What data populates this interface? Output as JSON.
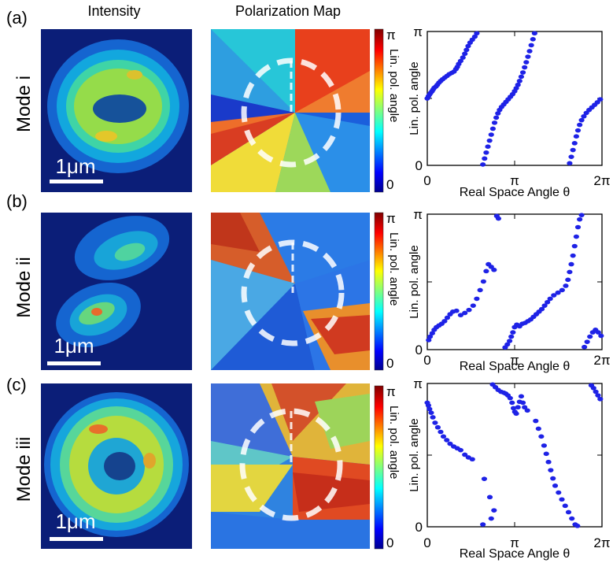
{
  "headers": {
    "intensity": "Intensity",
    "polarization": "Polarization Map"
  },
  "colorbar": {
    "top": "π",
    "bottom": "0",
    "label": "Lin. pol. angle"
  },
  "scalebar": "1μm",
  "colors": {
    "marker": "#1e22e6",
    "dashes": "#ffffff",
    "background": "#ffffff"
  },
  "chart_data": [
    {
      "type": "scatter",
      "panel": "(a)",
      "mode": "Mode i",
      "xlabel": "Real Space Angle θ",
      "ylabel": "Lin. pol. angle",
      "xlim": [
        0,
        6.2832
      ],
      "ylim": [
        0,
        3.1416
      ],
      "x_tick_labels": [
        "0",
        "π",
        "2π"
      ],
      "y_tick_labels": [
        "0",
        "π"
      ],
      "grid": false,
      "points": [
        [
          0.0,
          1.57
        ],
        [
          0.04,
          1.62
        ],
        [
          0.08,
          1.66
        ],
        [
          0.12,
          1.7
        ],
        [
          0.17,
          1.74
        ],
        [
          0.21,
          1.78
        ],
        [
          0.25,
          1.82
        ],
        [
          0.31,
          1.85
        ],
        [
          0.36,
          1.89
        ],
        [
          0.42,
          1.94
        ],
        [
          0.48,
          1.98
        ],
        [
          0.55,
          2.02
        ],
        [
          0.63,
          2.06
        ],
        [
          0.71,
          2.1
        ],
        [
          0.79,
          2.14
        ],
        [
          0.88,
          2.17
        ],
        [
          0.96,
          2.2
        ],
        [
          1.03,
          2.26
        ],
        [
          1.08,
          2.31
        ],
        [
          1.13,
          2.38
        ],
        [
          1.2,
          2.45
        ],
        [
          1.28,
          2.53
        ],
        [
          1.35,
          2.62
        ],
        [
          1.41,
          2.71
        ],
        [
          1.47,
          2.8
        ],
        [
          1.54,
          2.88
        ],
        [
          1.62,
          2.95
        ],
        [
          1.71,
          3.02
        ],
        [
          1.78,
          3.1
        ],
        [
          2.0,
          0.02
        ],
        [
          2.06,
          0.16
        ],
        [
          2.12,
          0.3
        ],
        [
          2.18,
          0.44
        ],
        [
          2.24,
          0.58
        ],
        [
          2.3,
          0.72
        ],
        [
          2.36,
          0.86
        ],
        [
          2.42,
          1.0
        ],
        [
          2.48,
          1.12
        ],
        [
          2.54,
          1.22
        ],
        [
          2.6,
          1.3
        ],
        [
          2.67,
          1.37
        ],
        [
          2.75,
          1.43
        ],
        [
          2.83,
          1.49
        ],
        [
          2.91,
          1.55
        ],
        [
          2.99,
          1.61
        ],
        [
          3.07,
          1.67
        ],
        [
          3.14,
          1.74
        ],
        [
          3.2,
          1.81
        ],
        [
          3.26,
          1.89
        ],
        [
          3.32,
          1.98
        ],
        [
          3.38,
          2.08
        ],
        [
          3.44,
          2.18
        ],
        [
          3.5,
          2.3
        ],
        [
          3.56,
          2.42
        ],
        [
          3.62,
          2.55
        ],
        [
          3.68,
          2.68
        ],
        [
          3.74,
          2.82
        ],
        [
          3.8,
          2.96
        ],
        [
          3.86,
          3.1
        ],
        [
          5.12,
          0.05
        ],
        [
          5.18,
          0.2
        ],
        [
          5.24,
          0.36
        ],
        [
          5.3,
          0.52
        ],
        [
          5.36,
          0.68
        ],
        [
          5.42,
          0.82
        ],
        [
          5.48,
          0.95
        ],
        [
          5.55,
          1.06
        ],
        [
          5.63,
          1.15
        ],
        [
          5.72,
          1.23
        ],
        [
          5.82,
          1.3
        ],
        [
          5.92,
          1.36
        ],
        [
          6.02,
          1.42
        ],
        [
          6.12,
          1.48
        ],
        [
          6.22,
          1.55
        ]
      ]
    },
    {
      "type": "scatter",
      "panel": "(b)",
      "mode": "Mode ii",
      "xlabel": "Real Space Angle θ",
      "ylabel": "Lin. pol. angle",
      "xlim": [
        0,
        6.2832
      ],
      "ylim": [
        0,
        3.1416
      ],
      "x_tick_labels": [
        "0",
        "π",
        "2π"
      ],
      "y_tick_labels": [
        "0",
        "π"
      ],
      "grid": false,
      "points": [
        [
          0.05,
          0.22
        ],
        [
          0.1,
          0.3
        ],
        [
          0.18,
          0.38
        ],
        [
          0.25,
          0.46
        ],
        [
          0.33,
          0.52
        ],
        [
          0.42,
          0.56
        ],
        [
          0.52,
          0.6
        ],
        [
          0.62,
          0.66
        ],
        [
          0.72,
          0.74
        ],
        [
          0.82,
          0.82
        ],
        [
          0.92,
          0.88
        ],
        [
          1.05,
          0.9
        ],
        [
          1.2,
          0.8
        ],
        [
          1.35,
          0.85
        ],
        [
          1.5,
          0.92
        ],
        [
          1.65,
          1.02
        ],
        [
          1.78,
          1.18
        ],
        [
          1.9,
          1.38
        ],
        [
          2.02,
          1.58
        ],
        [
          2.12,
          1.82
        ],
        [
          2.2,
          1.98
        ],
        [
          2.3,
          1.92
        ],
        [
          2.4,
          1.85
        ],
        [
          2.5,
          3.1
        ],
        [
          2.56,
          3.04
        ],
        [
          2.8,
          0.05
        ],
        [
          2.88,
          0.12
        ],
        [
          2.96,
          0.2
        ],
        [
          3.02,
          0.3
        ],
        [
          3.08,
          0.4
        ],
        [
          3.14,
          0.52
        ],
        [
          3.22,
          0.58
        ],
        [
          3.32,
          0.54
        ],
        [
          3.42,
          0.6
        ],
        [
          3.52,
          0.62
        ],
        [
          3.62,
          0.66
        ],
        [
          3.72,
          0.7
        ],
        [
          3.82,
          0.76
        ],
        [
          3.92,
          0.82
        ],
        [
          4.02,
          0.88
        ],
        [
          4.12,
          0.94
        ],
        [
          4.22,
          1.02
        ],
        [
          4.32,
          1.1
        ],
        [
          4.42,
          1.18
        ],
        [
          4.55,
          1.26
        ],
        [
          4.7,
          1.32
        ],
        [
          4.85,
          1.38
        ],
        [
          4.98,
          1.48
        ],
        [
          5.06,
          1.62
        ],
        [
          5.12,
          1.8
        ],
        [
          5.18,
          1.98
        ],
        [
          5.24,
          2.18
        ],
        [
          5.3,
          2.4
        ],
        [
          5.36,
          2.62
        ],
        [
          5.42,
          2.84
        ],
        [
          5.48,
          3.02
        ],
        [
          5.55,
          3.12
        ],
        [
          5.65,
          0.06
        ],
        [
          5.75,
          0.18
        ],
        [
          5.85,
          0.3
        ],
        [
          5.95,
          0.4
        ],
        [
          6.05,
          0.46
        ],
        [
          6.15,
          0.4
        ],
        [
          6.25,
          0.32
        ]
      ]
    },
    {
      "type": "scatter",
      "panel": "(c)",
      "mode": "Mode iii",
      "xlabel": "Real Space Angle θ",
      "ylabel": "Lin. pol. angle",
      "xlim": [
        0,
        6.2832
      ],
      "ylim": [
        0,
        3.1416
      ],
      "x_tick_labels": [
        "0",
        "π",
        "2π"
      ],
      "y_tick_labels": [
        "0",
        "π"
      ],
      "grid": false,
      "points": [
        [
          0.0,
          2.72
        ],
        [
          0.04,
          2.66
        ],
        [
          0.08,
          2.58
        ],
        [
          0.14,
          2.5
        ],
        [
          0.2,
          2.4
        ],
        [
          0.28,
          2.28
        ],
        [
          0.38,
          2.18
        ],
        [
          0.48,
          2.08
        ],
        [
          0.58,
          1.98
        ],
        [
          0.7,
          1.9
        ],
        [
          0.82,
          1.82
        ],
        [
          0.95,
          1.76
        ],
        [
          1.08,
          1.72
        ],
        [
          1.2,
          1.68
        ],
        [
          1.35,
          1.58
        ],
        [
          1.48,
          1.52
        ],
        [
          1.62,
          1.48
        ],
        [
          2.05,
          1.05
        ],
        [
          2.25,
          0.65
        ],
        [
          2.4,
          0.36
        ],
        [
          2.3,
          0.18
        ],
        [
          2.0,
          0.05
        ],
        [
          2.35,
          3.12
        ],
        [
          2.45,
          3.06
        ],
        [
          2.55,
          3.0
        ],
        [
          2.65,
          2.96
        ],
        [
          2.75,
          2.94
        ],
        [
          2.82,
          2.92
        ],
        [
          2.9,
          2.88
        ],
        [
          2.98,
          2.82
        ],
        [
          3.05,
          2.72
        ],
        [
          3.1,
          2.6
        ],
        [
          3.15,
          2.52
        ],
        [
          3.2,
          2.48
        ],
        [
          3.26,
          2.62
        ],
        [
          3.32,
          2.74
        ],
        [
          3.38,
          2.86
        ],
        [
          3.44,
          2.72
        ],
        [
          3.5,
          2.62
        ],
        [
          3.6,
          2.55
        ],
        [
          3.9,
          2.32
        ],
        [
          4.0,
          2.15
        ],
        [
          4.1,
          1.98
        ],
        [
          4.2,
          1.78
        ],
        [
          4.28,
          1.6
        ],
        [
          4.36,
          1.42
        ],
        [
          4.44,
          1.24
        ],
        [
          4.52,
          1.06
        ],
        [
          4.6,
          0.9
        ],
        [
          4.72,
          0.75
        ],
        [
          4.84,
          0.6
        ],
        [
          4.96,
          0.46
        ],
        [
          5.08,
          0.32
        ],
        [
          5.2,
          0.18
        ],
        [
          5.32,
          0.05
        ],
        [
          5.4,
          0.02
        ],
        [
          5.9,
          3.1
        ],
        [
          5.98,
          3.04
        ],
        [
          6.06,
          2.96
        ],
        [
          6.14,
          2.88
        ],
        [
          6.22,
          2.8
        ]
      ]
    }
  ]
}
